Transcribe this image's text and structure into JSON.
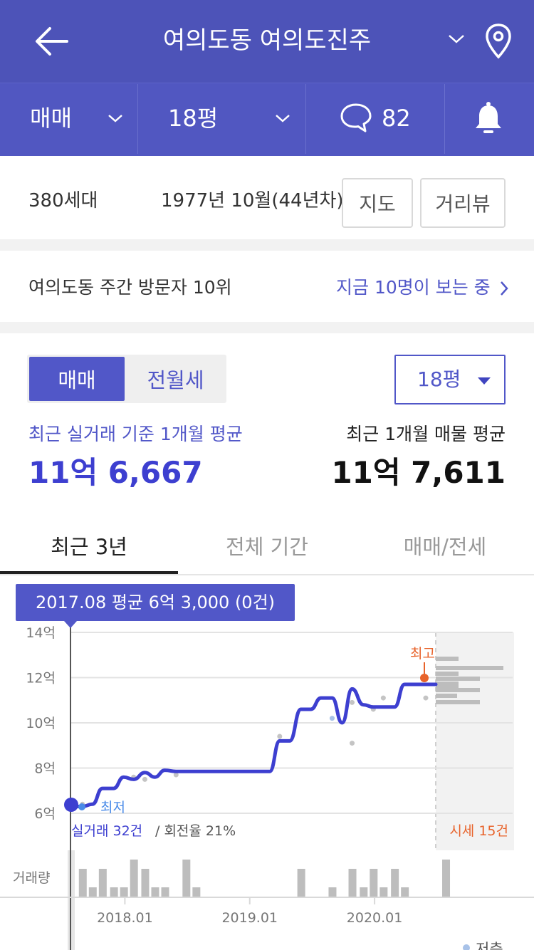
{
  "header": {
    "title": "여의도동 여의도진주"
  },
  "filters": {
    "deal_type": "매매",
    "size": "18평",
    "comment_count": "82"
  },
  "info": {
    "households": "380세대",
    "built": "1977년 10월(44년차)",
    "map_button": "지도",
    "street_view_button": "거리뷰"
  },
  "visitors": {
    "rank_text": "여의도동 주간 방문자 10위",
    "live_text": "지금 10명이 보는 중"
  },
  "price": {
    "segments": [
      "매매",
      "전월세"
    ],
    "size_select": "18평",
    "real_label": "최근 실거래 기준 1개월 평균",
    "real_value": "11억 6,667",
    "listing_label": "최근 1개월 매물 평균",
    "listing_value": "11억 7,611"
  },
  "tabs": [
    "최근 3년",
    "전체 기간",
    "매매/전세"
  ],
  "chart_ui": {
    "tooltip": "2017.08 평균 6억 3,000 (0건)",
    "highest_label": "최고",
    "lowest_label": "최저",
    "real_trade_summary": "실거래 32건",
    "turnover_summary": "/ 회전율 21%",
    "listing_summary": "시세 15건",
    "volume_label": "거래량",
    "bottom_legend": "저층",
    "accent": "#3d3fd0",
    "high_color": "#e8632b"
  },
  "chart_data": {
    "type": "line",
    "y_unit": "억",
    "y_ticks": [
      "14억",
      "12억",
      "10억",
      "8억",
      "6억"
    ],
    "ylim": [
      5.5,
      14.5
    ],
    "x_ticks": [
      "2018.01",
      "2019.01",
      "2020.01"
    ],
    "series": [
      {
        "x": [
          2017.58,
          2017.67,
          2017.75,
          2017.83,
          2017.92,
          2018.0,
          2018.08,
          2018.17,
          2018.25,
          2018.33,
          2018.42,
          2018.5,
          2018.67,
          2018.83,
          2019.0,
          2019.17,
          2019.25,
          2019.33,
          2019.42,
          2019.5,
          2019.58,
          2019.67,
          2019.75,
          2019.83,
          2019.92,
          2020.0,
          2020.08,
          2020.17,
          2020.25,
          2020.33,
          2020.42,
          2020.5
        ],
        "values": [
          6.3,
          6.3,
          6.4,
          7.1,
          7.1,
          7.6,
          7.5,
          7.8,
          7.6,
          7.9,
          7.85,
          7.85,
          7.85,
          7.85,
          7.85,
          7.85,
          9.2,
          9.2,
          10.6,
          10.6,
          11.1,
          11.1,
          10.0,
          11.5,
          10.8,
          10.7,
          10.7,
          10.7,
          11.7,
          11.7,
          11.7,
          11.7
        ]
      }
    ],
    "scatter_points": {
      "x": [
        2017.67,
        2018.08,
        2018.17,
        2018.42,
        2019.25,
        2019.67,
        2019.83,
        2019.83,
        2020.0,
        2020.08,
        2020.42
      ],
      "values": [
        6.4,
        7.6,
        7.5,
        7.7,
        9.4,
        10.2,
        10.9,
        9.1,
        10.6,
        11.1,
        11.1
      ]
    },
    "volume": {
      "x": [
        2017.67,
        2017.75,
        2017.83,
        2017.92,
        2018.0,
        2018.08,
        2018.17,
        2018.25,
        2018.33,
        2018.5,
        2018.58,
        2019.42,
        2019.67,
        2019.83,
        2019.92,
        2020.0,
        2020.08,
        2020.17,
        2020.25,
        2020.58
      ],
      "values": [
        3,
        1,
        3,
        1,
        1,
        4,
        3,
        1,
        1,
        4,
        1,
        3,
        1,
        3,
        1,
        3,
        1,
        3,
        1,
        4
      ]
    },
    "listing_histogram": [
      1,
      2,
      1,
      2,
      1,
      1,
      2,
      1,
      2
    ]
  }
}
